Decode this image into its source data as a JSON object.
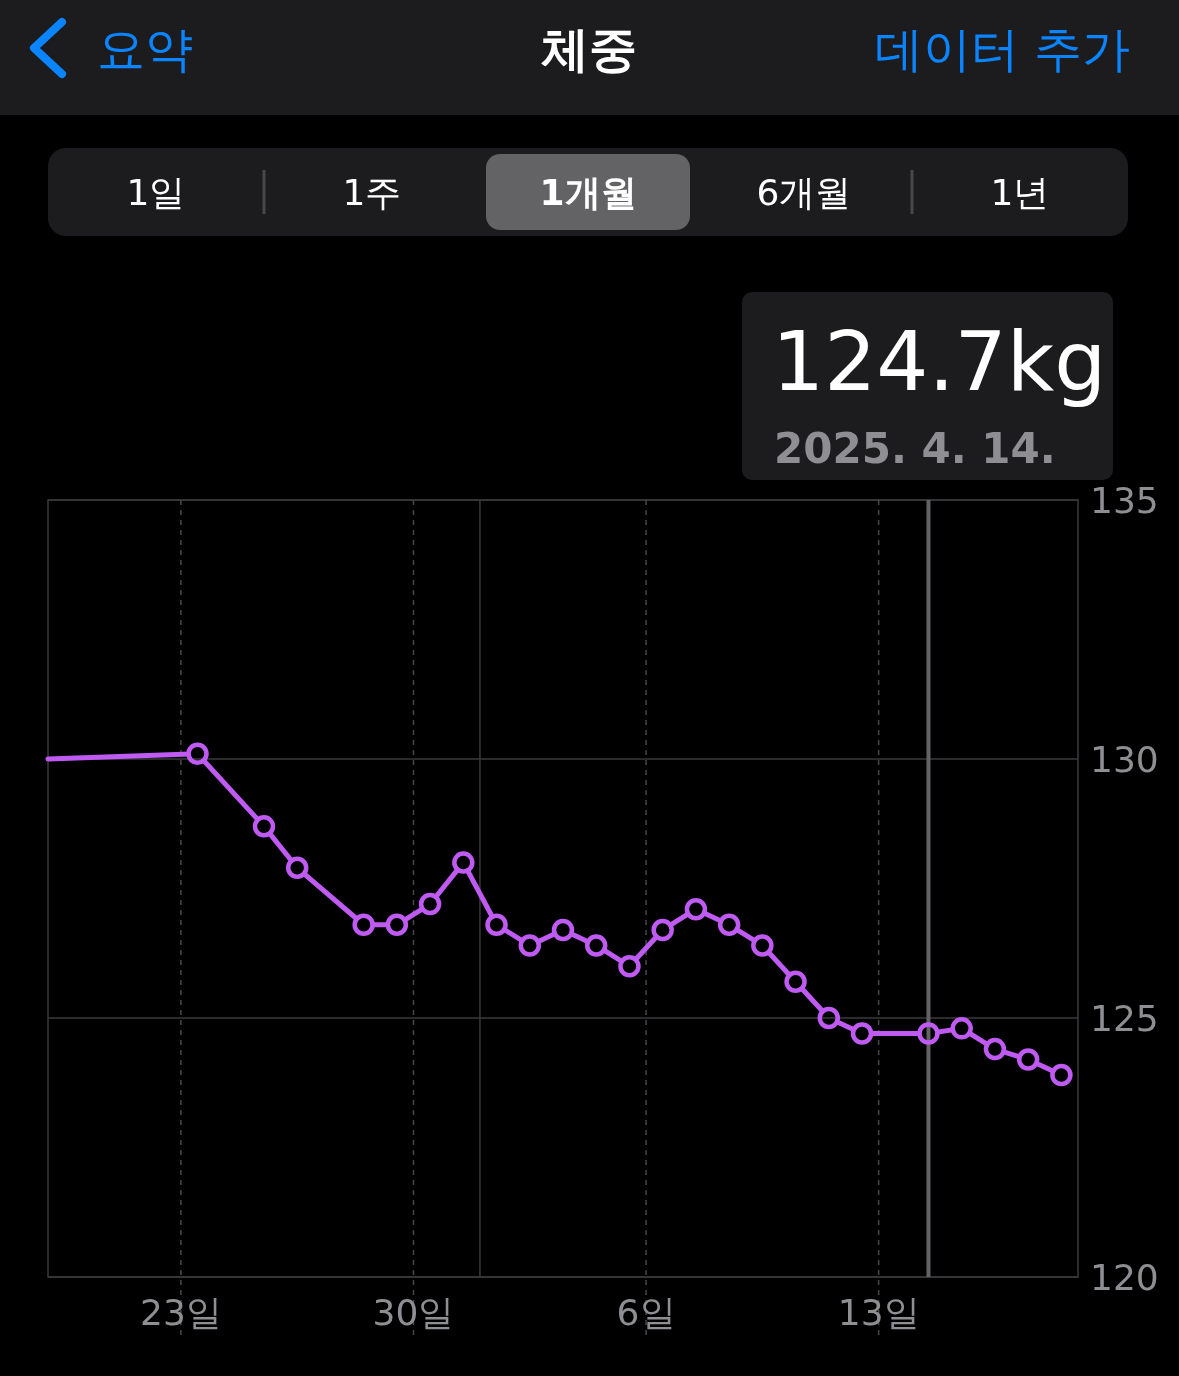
{
  "chart_data": {
    "type": "line",
    "title": "체중",
    "annotations": [
      "요약",
      "데이터 추가",
      "1일",
      "1주",
      "1개월",
      "6개월",
      "1년",
      "124.7kg",
      "2025. 4. 14."
    ],
    "series": [
      {
        "type": "line",
        "color": "#bf5af2",
        "x": [
          "2025-03-19",
          "2025-03-23T12:00"
        ],
        "values": [
          130.0,
          130.1
        ]
      },
      {
        "type": "line",
        "marker": "circle",
        "color": "#bf5af2",
        "x": [
          "2025-03-23T12:00",
          "2025-03-25T12:00",
          "2025-03-26T12:00",
          "2025-03-28T12:00",
          "2025-03-29T12:00",
          "2025-03-30T12:00",
          "2025-03-31T12:00",
          "2025-04-01T12:00",
          "2025-04-02T12:00",
          "2025-04-03T12:00",
          "2025-04-04T12:00",
          "2025-04-05T12:00",
          "2025-04-06T12:00",
          "2025-04-07T12:00",
          "2025-04-08T12:00",
          "2025-04-09T12:00",
          "2025-04-10T12:00",
          "2025-04-11T12:00",
          "2025-04-12T12:00",
          "2025-04-14T12:00",
          "2025-04-15T12:00",
          "2025-04-16T12:00",
          "2025-04-17T12:00",
          "2025-04-18T12:00"
        ],
        "values": [
          130.1,
          128.7,
          127.9,
          126.8,
          126.8,
          127.2,
          128.0,
          126.8,
          126.4,
          126.7,
          126.4,
          126.0,
          126.7,
          127.1,
          126.8,
          126.4,
          125.7,
          125.0,
          124.7,
          124.7,
          124.8,
          124.4,
          124.2,
          123.9
        ]
      }
    ],
    "xlim": [
      "2025-03-19",
      "2025-04-19"
    ],
    "xticks": [
      {
        "value": "2025-03-23",
        "label": "23일"
      },
      {
        "value": "2025-03-30",
        "label": "30일"
      },
      {
        "value": "2025-04-06",
        "label": "6일"
      },
      {
        "value": "2025-04-13",
        "label": "13일"
      }
    ],
    "ylim": [
      120,
      135
    ],
    "yticks": [
      120,
      125,
      130,
      135
    ],
    "ref_lines": [
      {
        "axis": "x",
        "value": "2025-04-01",
        "color": "#3a3a3c",
        "line_style": "solid"
      },
      {
        "axis": "x",
        "value": "2025-04-14T12:00",
        "color": "#636366",
        "line_style": "solid"
      }
    ],
    "grid": true
  }
}
